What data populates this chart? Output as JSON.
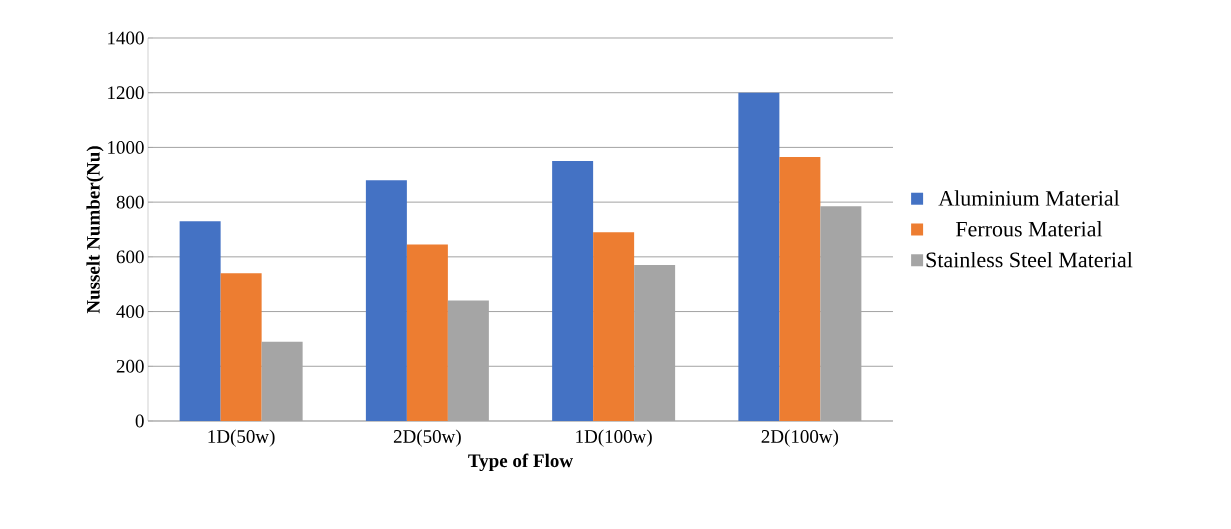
{
  "chart_data": {
    "type": "bar",
    "xlabel": "Type of Flow",
    "ylabel": "Nusselt Number(Nu)",
    "categories": [
      "1D(50w)",
      "2D(50w)",
      "1D(100w)",
      "2D(100w)"
    ],
    "series": [
      {
        "name": "Aluminium Material",
        "color": "#4472c4",
        "values": [
          730,
          880,
          950,
          1200
        ]
      },
      {
        "name": "Ferrous Material",
        "color": "#ed7d31",
        "values": [
          540,
          645,
          690,
          965
        ]
      },
      {
        "name": "Stainless Steel Material",
        "color": "#a5a5a5",
        "values": [
          290,
          440,
          570,
          785
        ]
      }
    ],
    "ylim": [
      0,
      1400
    ],
    "yticks": [
      0,
      200,
      400,
      600,
      800,
      1000,
      1200,
      1400
    ],
    "grid": "y",
    "legend": "right"
  }
}
